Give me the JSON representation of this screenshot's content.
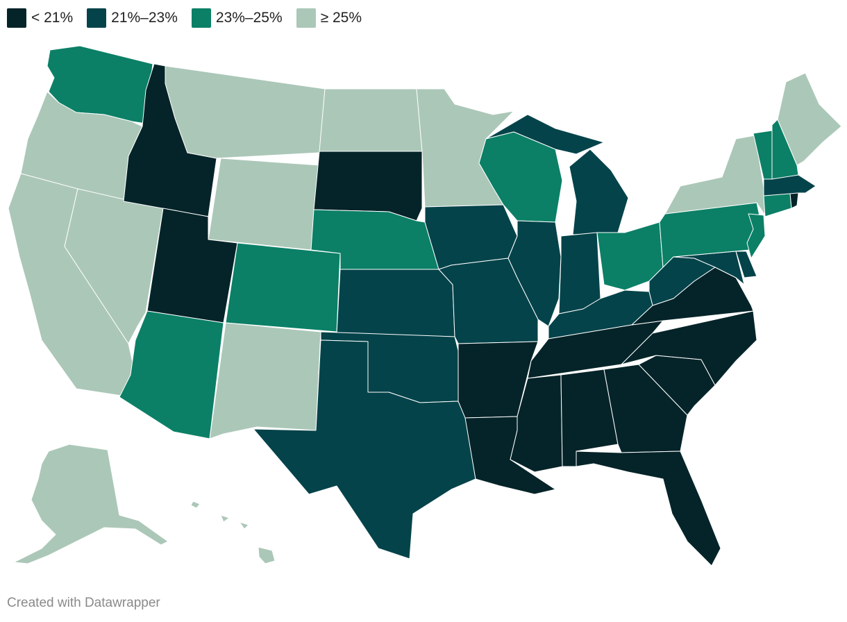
{
  "legend": [
    {
      "label": "< 21%",
      "color": "#052429"
    },
    {
      "label": "21%–23%",
      "color": "#04434a"
    },
    {
      "label": "23%–25%",
      "color": "#0b8066"
    },
    {
      "label": "≥ 25%",
      "color": "#abc7b8"
    }
  ],
  "map": {
    "bins": {
      "WA": 2,
      "OR": 3,
      "CA": 3,
      "NV": 3,
      "ID": 0,
      "MT": 3,
      "WY": 3,
      "UT": 0,
      "AZ": 2,
      "CO": 2,
      "NM": 3,
      "ND": 3,
      "SD": 0,
      "NE": 2,
      "KS": 1,
      "OK": 1,
      "TX": 1,
      "MN": 3,
      "IA": 1,
      "MO": 1,
      "AR": 0,
      "LA": 0,
      "WI": 2,
      "IL": 1,
      "MI": 1,
      "IN": 1,
      "OH": 2,
      "KY": 1,
      "TN": 0,
      "MS": 0,
      "AL": 0,
      "GA": 0,
      "FL": 0,
      "SC": 0,
      "NC": 0,
      "VA": 0,
      "WV": 1,
      "MD": 1,
      "DE": 1,
      "PA": 2,
      "NJ": 2,
      "NY": 3,
      "CT": 2,
      "RI": 0,
      "MA": 1,
      "VT": 2,
      "NH": 2,
      "ME": 3,
      "AK": 3,
      "HI": 3
    }
  },
  "footer": {
    "credit": "Created with Datawrapper"
  }
}
